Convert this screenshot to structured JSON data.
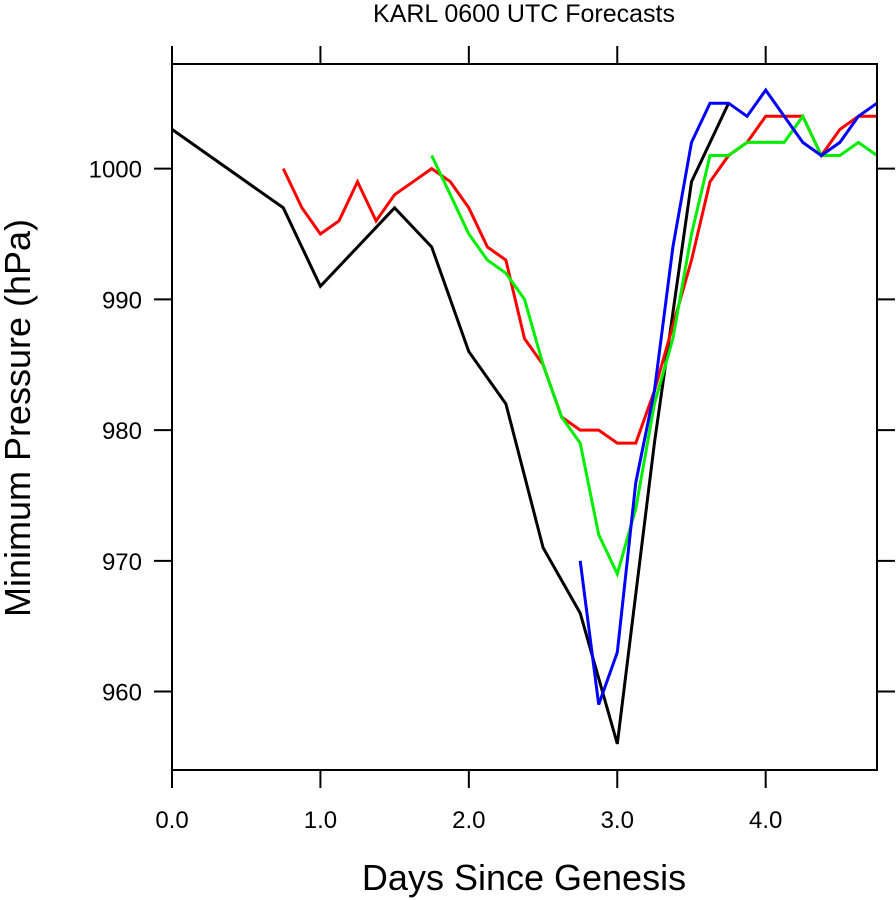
{
  "chart_data": {
    "type": "line",
    "title": "KARL 0600 UTC Forecasts",
    "xlabel": "Days Since Genesis",
    "ylabel": "Minimum Pressure (hPa)",
    "xlim": [
      0.0,
      4.75
    ],
    "ylim": [
      954,
      1008
    ],
    "xticks": [
      0.0,
      1.0,
      2.0,
      3.0,
      4.0
    ],
    "xtick_labels": [
      "0.0",
      "1.0",
      "2.0",
      "3.0",
      "4.0"
    ],
    "yticks": [
      960,
      970,
      980,
      990,
      1000
    ],
    "ytick_labels": [
      "960",
      "970",
      "980",
      "990",
      "1000"
    ],
    "grid": false,
    "series": [
      {
        "color": "#000000",
        "x": [
          0.0,
          0.75,
          1.0,
          1.5,
          1.75,
          2.0,
          2.25,
          2.5,
          2.75,
          3.0,
          3.25,
          3.5,
          3.75
        ],
        "y": [
          1003,
          997,
          991,
          997,
          994,
          986,
          982,
          971,
          966,
          956,
          979,
          999,
          1005
        ]
      },
      {
        "color": "#ff0000",
        "x": [
          0.75,
          0.875,
          1.0,
          1.125,
          1.25,
          1.375,
          1.5,
          1.625,
          1.75,
          1.875,
          2.0,
          2.125,
          2.25,
          2.375,
          2.5,
          2.625,
          2.75,
          2.875,
          3.0,
          3.125,
          3.25,
          3.375,
          3.5,
          3.625,
          3.75,
          3.875,
          4.0,
          4.125,
          4.25,
          4.375,
          4.5,
          4.625,
          4.75
        ],
        "y": [
          1000,
          997,
          995,
          996,
          999,
          996,
          998,
          999,
          1000,
          999,
          997,
          994,
          993,
          987,
          985,
          981,
          980,
          980,
          979,
          979,
          983,
          988,
          993,
          999,
          1001,
          1002,
          1004,
          1004,
          1004,
          1001,
          1003,
          1004,
          1004
        ]
      },
      {
        "color": "#00ee00",
        "x": [
          1.75,
          1.875,
          2.0,
          2.125,
          2.25,
          2.375,
          2.5,
          2.625,
          2.75,
          2.875,
          3.0,
          3.125,
          3.25,
          3.375,
          3.5,
          3.625,
          3.75,
          3.875,
          4.0,
          4.125,
          4.25,
          4.375,
          4.5,
          4.625,
          4.75
        ],
        "y": [
          1001,
          998,
          995,
          993,
          992,
          990,
          985,
          981,
          979,
          972,
          969,
          974,
          982,
          987,
          995,
          1001,
          1001,
          1002,
          1002,
          1002,
          1004,
          1001,
          1001,
          1002,
          1001
        ]
      },
      {
        "color": "#0000ff",
        "x": [
          2.75,
          2.875,
          3.0,
          3.125,
          3.25,
          3.375,
          3.5,
          3.625,
          3.75,
          3.875,
          4.0,
          4.125,
          4.25,
          4.375,
          4.5,
          4.625,
          4.75
        ],
        "y": [
          970,
          959,
          963,
          976,
          983,
          994,
          1002,
          1005,
          1005,
          1004,
          1006,
          1004,
          1002,
          1001,
          1002,
          1004,
          1005
        ]
      }
    ]
  }
}
